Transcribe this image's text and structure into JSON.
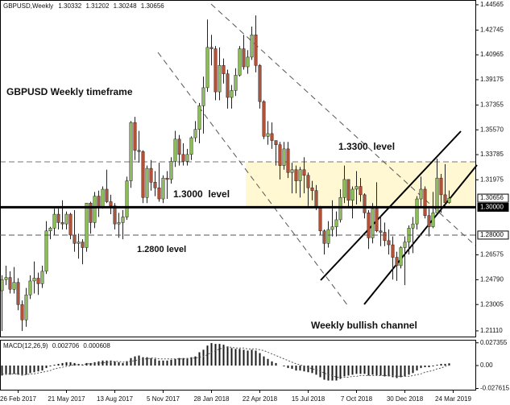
{
  "chart_data": {
    "type": "candlestick",
    "symbol": "GBPUSD,Weekly",
    "up_color": "#8fbf5c",
    "down_color": "#b3543a",
    "xlim": [
      -0.5,
      117.5
    ],
    "xticks": [
      {
        "value": 4,
        "label": "26 Feb 2017"
      },
      {
        "value": 16,
        "label": "21 May 2017"
      },
      {
        "value": 28,
        "label": "13 Aug 2017"
      },
      {
        "value": 40,
        "label": "5 Nov 2017"
      },
      {
        "value": 52,
        "label": "28 Jan 2018"
      },
      {
        "value": 64,
        "label": "22 Apr 2018"
      },
      {
        "value": 76,
        "label": "15 Jul 2018"
      },
      {
        "value": 88,
        "label": "7 Oct 2018"
      },
      {
        "value": 100,
        "label": "30 Dec 2018"
      },
      {
        "value": 112,
        "label": "24 Mar 2019"
      }
    ],
    "ylim": [
      1.207,
      1.4485
    ],
    "yticks": [
      1.44565,
      1.42745,
      1.40965,
      1.39175,
      1.37355,
      {
        "value": 1.3557,
        "label": "1.35570"
      },
      1.33785,
      1.31975,
      1.26575,
      {
        "value": 1.2479,
        "label": "1.24790"
      },
      1.23005,
      {
        "value": 1.2111,
        "label": "1.21110"
      }
    ],
    "levels": [
      {
        "value": 1.3,
        "label": "1.30000",
        "style": "solid"
      },
      {
        "value": 1.28,
        "label": "1.28000",
        "style": "dashed"
      }
    ],
    "annotations": [
      "GBPUSD Weekly timeframe",
      "1.3300  level",
      "1.3000  level",
      "1.2800 level",
      "Weekly bullish channel"
    ],
    "ohlc": [
      [
        1.24,
        1.251,
        1.211,
        1.248
      ],
      [
        1.248,
        1.258,
        1.244,
        1.2495
      ],
      [
        1.2495,
        1.254,
        1.238,
        1.241
      ],
      [
        1.241,
        1.257,
        1.238,
        1.246
      ],
      [
        1.246,
        1.249,
        1.226,
        1.23
      ],
      [
        1.23,
        1.233,
        1.211,
        1.219
      ],
      [
        1.219,
        1.242,
        1.214,
        1.237
      ],
      [
        1.237,
        1.251,
        1.234,
        1.247
      ],
      [
        1.247,
        1.261,
        1.238,
        1.249
      ],
      [
        1.249,
        1.253,
        1.237,
        1.245
      ],
      [
        1.245,
        1.258,
        1.242,
        1.254
      ],
      [
        1.254,
        1.29,
        1.252,
        1.283
      ],
      [
        1.283,
        1.286,
        1.277,
        1.285
      ],
      [
        1.285,
        1.299,
        1.28,
        1.295
      ],
      [
        1.295,
        1.299,
        1.284,
        1.289
      ],
      [
        1.289,
        1.305,
        1.284,
        1.288
      ],
      [
        1.288,
        1.297,
        1.284,
        1.295
      ],
      [
        1.295,
        1.296,
        1.277,
        1.28
      ],
      [
        1.28,
        1.298,
        1.268,
        1.274
      ],
      [
        1.274,
        1.281,
        1.263,
        1.275
      ],
      [
        1.275,
        1.277,
        1.259,
        1.271
      ],
      [
        1.271,
        1.303,
        1.268,
        1.303
      ],
      [
        1.303,
        1.304,
        1.281,
        1.289
      ],
      [
        1.289,
        1.311,
        1.285,
        1.308
      ],
      [
        1.308,
        1.312,
        1.293,
        1.3
      ],
      [
        1.3,
        1.315,
        1.299,
        1.313
      ],
      [
        1.313,
        1.327,
        1.303,
        1.304
      ],
      [
        1.304,
        1.309,
        1.295,
        1.301
      ],
      [
        1.301,
        1.303,
        1.284,
        1.288
      ],
      [
        1.288,
        1.296,
        1.278,
        1.289
      ],
      [
        1.289,
        1.298,
        1.277,
        1.293
      ],
      [
        1.293,
        1.322,
        1.291,
        1.319
      ],
      [
        1.319,
        1.362,
        1.314,
        1.361
      ],
      [
        1.361,
        1.365,
        1.334,
        1.341
      ],
      [
        1.341,
        1.355,
        1.332,
        1.34
      ],
      [
        1.34,
        1.341,
        1.303,
        1.307
      ],
      [
        1.307,
        1.33,
        1.303,
        1.328
      ],
      [
        1.328,
        1.334,
        1.312,
        1.318
      ],
      [
        1.318,
        1.326,
        1.308,
        1.314
      ],
      [
        1.314,
        1.332,
        1.304,
        1.306
      ],
      [
        1.306,
        1.323,
        1.303,
        1.321
      ],
      [
        1.321,
        1.326,
        1.306,
        1.32
      ],
      [
        1.32,
        1.336,
        1.317,
        1.333
      ],
      [
        1.333,
        1.355,
        1.329,
        1.349
      ],
      [
        1.349,
        1.352,
        1.33,
        1.338
      ],
      [
        1.338,
        1.346,
        1.33,
        1.333
      ],
      [
        1.333,
        1.342,
        1.33,
        1.338
      ],
      [
        1.338,
        1.351,
        1.334,
        1.35
      ],
      [
        1.35,
        1.362,
        1.347,
        1.356
      ],
      [
        1.356,
        1.375,
        1.346,
        1.373
      ],
      [
        1.373,
        1.394,
        1.353,
        1.386
      ],
      [
        1.386,
        1.435,
        1.383,
        1.415
      ],
      [
        1.415,
        1.424,
        1.402,
        1.414
      ],
      [
        1.414,
        1.416,
        1.377,
        1.383
      ],
      [
        1.383,
        1.415,
        1.377,
        1.402
      ],
      [
        1.402,
        1.407,
        1.389,
        1.396
      ],
      [
        1.396,
        1.399,
        1.371,
        1.379
      ],
      [
        1.379,
        1.388,
        1.371,
        1.384
      ],
      [
        1.384,
        1.4,
        1.38,
        1.395
      ],
      [
        1.395,
        1.416,
        1.394,
        1.414
      ],
      [
        1.414,
        1.424,
        1.399,
        1.401
      ],
      [
        1.401,
        1.413,
        1.396,
        1.408
      ],
      [
        1.408,
        1.43,
        1.406,
        1.424
      ],
      [
        1.424,
        1.438,
        1.397,
        1.402
      ],
      [
        1.402,
        1.403,
        1.371,
        1.376
      ],
      [
        1.376,
        1.377,
        1.349,
        1.351
      ],
      [
        1.351,
        1.362,
        1.345,
        1.353
      ],
      [
        1.353,
        1.361,
        1.342,
        1.348
      ],
      [
        1.348,
        1.348,
        1.33,
        1.345
      ],
      [
        1.345,
        1.347,
        1.32,
        1.33
      ],
      [
        1.33,
        1.347,
        1.327,
        1.342
      ],
      [
        1.342,
        1.347,
        1.321,
        1.325
      ],
      [
        1.325,
        1.332,
        1.31,
        1.327
      ],
      [
        1.327,
        1.33,
        1.31,
        1.319
      ],
      [
        1.319,
        1.329,
        1.307,
        1.327
      ],
      [
        1.327,
        1.336,
        1.31,
        1.323
      ],
      [
        1.323,
        1.325,
        1.301,
        1.314
      ],
      [
        1.314,
        1.319,
        1.305,
        1.312
      ],
      [
        1.312,
        1.316,
        1.298,
        1.3
      ],
      [
        1.3,
        1.301,
        1.28,
        1.283
      ],
      [
        1.283,
        1.284,
        1.266,
        1.274
      ],
      [
        1.274,
        1.29,
        1.271,
        1.284
      ],
      [
        1.284,
        1.305,
        1.279,
        1.286
      ],
      [
        1.286,
        1.297,
        1.279,
        1.291
      ],
      [
        1.291,
        1.313,
        1.289,
        1.307
      ],
      [
        1.307,
        1.33,
        1.303,
        1.32
      ],
      [
        1.32,
        1.32,
        1.3,
        1.305
      ],
      [
        1.305,
        1.315,
        1.292,
        1.313
      ],
      [
        1.313,
        1.326,
        1.302,
        1.315
      ],
      [
        1.315,
        1.321,
        1.304,
        1.309
      ],
      [
        1.309,
        1.31,
        1.292,
        1.296
      ],
      [
        1.296,
        1.298,
        1.27,
        1.278
      ],
      [
        1.278,
        1.303,
        1.274,
        1.299
      ],
      [
        1.299,
        1.318,
        1.282,
        1.283
      ],
      [
        1.283,
        1.294,
        1.272,
        1.282
      ],
      [
        1.282,
        1.289,
        1.272,
        1.276
      ],
      [
        1.276,
        1.284,
        1.266,
        1.273
      ],
      [
        1.273,
        1.279,
        1.248,
        1.264
      ],
      [
        1.264,
        1.268,
        1.247,
        1.258
      ],
      [
        1.258,
        1.272,
        1.256,
        1.271
      ],
      [
        1.271,
        1.279,
        1.244,
        1.275
      ],
      [
        1.275,
        1.287,
        1.266,
        1.285
      ],
      [
        1.285,
        1.293,
        1.267,
        1.288
      ],
      [
        1.288,
        1.308,
        1.284,
        1.306
      ],
      [
        1.306,
        1.322,
        1.3,
        1.313
      ],
      [
        1.313,
        1.315,
        1.292,
        1.294
      ],
      [
        1.294,
        1.299,
        1.279,
        1.286
      ],
      [
        1.286,
        1.311,
        1.285,
        1.296
      ],
      [
        1.296,
        1.335,
        1.295,
        1.321
      ],
      [
        1.321,
        1.324,
        1.296,
        1.309
      ],
      [
        1.309,
        1.331,
        1.301,
        1.3033
      ],
      [
        1.30332,
        1.31202,
        1.30248,
        1.30656
      ]
    ],
    "indicator": {
      "name": "MACD(12,26,9)",
      "ylim": [
        -0.03,
        0.03
      ],
      "yticks": [
        0.027355,
        {
          "value": 0,
          "label": "0.00"
        },
        -0.027615
      ],
      "hist_color": "#1a1a1a",
      "signal_color": "#555555",
      "macd": [
        -0.012,
        -0.011,
        -0.011,
        -0.01,
        -0.011,
        -0.012,
        -0.011,
        -0.009,
        -0.008,
        -0.007,
        -0.006,
        -0.003,
        -0.001,
        0.001,
        0.002,
        0.003,
        0.004,
        0.004,
        0.003,
        0.002,
        0.001,
        0.003,
        0.003,
        0.004,
        0.005,
        0.006,
        0.006,
        0.006,
        0.005,
        0.004,
        0.003,
        0.005,
        0.009,
        0.011,
        0.012,
        0.01,
        0.01,
        0.009,
        0.008,
        0.006,
        0.006,
        0.006,
        0.007,
        0.008,
        0.009,
        0.009,
        0.009,
        0.01,
        0.011,
        0.016,
        0.019,
        0.024,
        0.027,
        0.026,
        0.026,
        0.025,
        0.023,
        0.021,
        0.02,
        0.02,
        0.019,
        0.018,
        0.019,
        0.018,
        0.015,
        0.011,
        0.008,
        0.005,
        0.003,
        0.0,
        -0.001,
        -0.003,
        -0.004,
        -0.006,
        -0.006,
        -0.007,
        -0.008,
        -0.009,
        -0.011,
        -0.014,
        -0.017,
        -0.018,
        -0.018,
        -0.018,
        -0.016,
        -0.013,
        -0.012,
        -0.011,
        -0.01,
        -0.01,
        -0.01,
        -0.012,
        -0.011,
        -0.012,
        -0.012,
        -0.013,
        -0.013,
        -0.014,
        -0.015,
        -0.014,
        -0.013,
        -0.011,
        -0.009,
        -0.006,
        -0.003,
        -0.002,
        -0.002,
        -0.001,
        0.001,
        0.002,
        0.002,
        0.002706
      ],
      "signal": [
        -0.01,
        -0.01,
        -0.01,
        -0.01,
        -0.01,
        -0.011,
        -0.011,
        -0.01,
        -0.01,
        -0.009,
        -0.008,
        -0.007,
        -0.006,
        -0.004,
        -0.003,
        -0.002,
        -0.001,
        0.0,
        0.001,
        0.001,
        0.001,
        0.002,
        0.002,
        0.002,
        0.003,
        0.003,
        0.004,
        0.004,
        0.005,
        0.005,
        0.004,
        0.005,
        0.005,
        0.006,
        0.007,
        0.008,
        0.008,
        0.009,
        0.009,
        0.008,
        0.008,
        0.008,
        0.008,
        0.008,
        0.008,
        0.008,
        0.008,
        0.009,
        0.009,
        0.01,
        0.011,
        0.013,
        0.016,
        0.018,
        0.02,
        0.021,
        0.022,
        0.022,
        0.021,
        0.021,
        0.021,
        0.02,
        0.02,
        0.02,
        0.019,
        0.018,
        0.016,
        0.014,
        0.012,
        0.01,
        0.008,
        0.006,
        0.004,
        0.002,
        0.001,
        -0.001,
        -0.002,
        -0.004,
        -0.005,
        -0.007,
        -0.009,
        -0.011,
        -0.012,
        -0.014,
        -0.014,
        -0.014,
        -0.014,
        -0.013,
        -0.013,
        -0.012,
        -0.012,
        -0.012,
        -0.012,
        -0.012,
        -0.012,
        -0.012,
        -0.012,
        -0.012,
        -0.013,
        -0.013,
        -0.013,
        -0.013,
        -0.012,
        -0.011,
        -0.01,
        -0.008,
        -0.007,
        -0.006,
        -0.004,
        -0.003,
        -0.001,
        0.000608
      ]
    }
  }
}
